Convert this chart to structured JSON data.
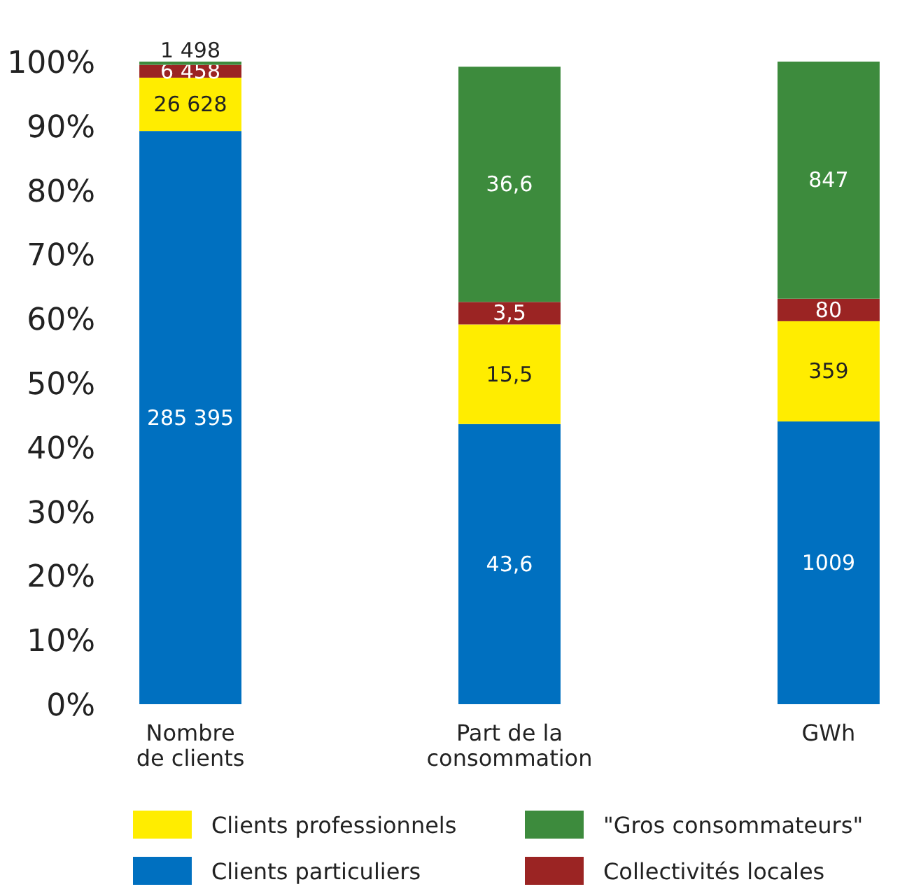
{
  "chart_data": {
    "type": "bar",
    "stacked": true,
    "categories": [
      "Nombre\nde clients",
      "Part de la\nconsommation",
      "GWh"
    ],
    "series": [
      {
        "name": "Clients particuliers",
        "color": "#0070c0",
        "values": [
          89.2,
          43.6,
          44.0
        ],
        "value_labels": [
          null,
          "43,6",
          null
        ]
      },
      {
        "name": "Clients professionnels",
        "color": "#ffed00",
        "values": [
          8.3,
          15.5,
          15.6
        ],
        "value_labels": [
          null,
          "15,5",
          null
        ]
      },
      {
        "name": "Collectivités locales",
        "color": "#9b2423",
        "values": [
          2.0,
          3.5,
          3.5
        ],
        "value_labels": [
          null,
          "3,5",
          null
        ]
      },
      {
        "name": "\"Gros consommateurs\"",
        "color": "#3d8b3d",
        "values": [
          0.5,
          36.6,
          36.9
        ],
        "value_labels": [
          null,
          "36,6",
          null
        ]
      }
    ],
    "annotations": [
      "285 395",
      "26 628",
      "6 458",
      "1 498",
      "1009",
      "359",
      "80",
      "847"
    ],
    "ylim": [
      0,
      100
    ],
    "yticks": [
      {
        "value": 0,
        "label": "0%"
      },
      {
        "value": 10,
        "label": "10%"
      },
      {
        "value": 20,
        "label": "20%"
      },
      {
        "value": 30,
        "label": "30%"
      },
      {
        "value": 40,
        "label": "40%"
      },
      {
        "value": 50,
        "label": "50%"
      },
      {
        "value": 60,
        "label": "60%"
      },
      {
        "value": 70,
        "label": "70%"
      },
      {
        "value": 80,
        "label": "80%"
      },
      {
        "value": 90,
        "label": "90%"
      },
      {
        "value": 100,
        "label": "100%"
      }
    ],
    "grid": false,
    "legend": "bottom"
  }
}
